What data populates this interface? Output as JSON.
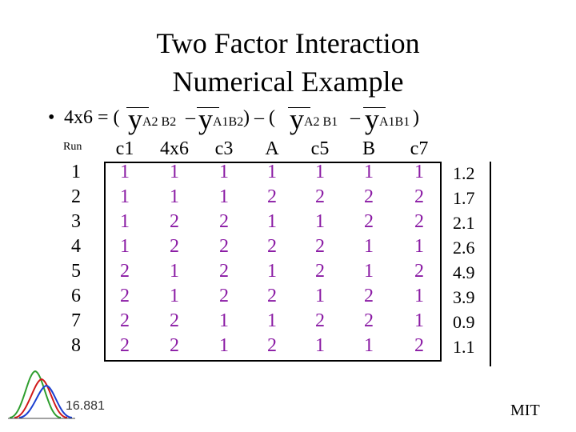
{
  "title": {
    "line1": "Two Factor Interaction",
    "line2": "Numerical Example"
  },
  "formula": {
    "bullet": "•",
    "lhs": "4x6 = (",
    "y": "y",
    "sub1": "A2  B2",
    "minus1": "–",
    "sub2": "A1B2",
    "mid": ") – (",
    "sub3": "A2  B1",
    "minus2": "–",
    "sub4": "A1B1",
    "end": ")"
  },
  "table": {
    "run_header": "Run",
    "columns": [
      "c1",
      "4x6",
      "c3",
      "A",
      "c5",
      "B",
      "c7"
    ],
    "runs": [
      "1",
      "2",
      "3",
      "4",
      "5",
      "6",
      "7",
      "8"
    ],
    "rows": [
      [
        "1",
        "1",
        "1",
        "1",
        "1",
        "1",
        "1"
      ],
      [
        "1",
        "1",
        "1",
        "2",
        "2",
        "2",
        "2"
      ],
      [
        "1",
        "2",
        "2",
        "1",
        "1",
        "2",
        "2"
      ],
      [
        "1",
        "2",
        "2",
        "2",
        "2",
        "1",
        "1"
      ],
      [
        "2",
        "1",
        "2",
        "1",
        "2",
        "1",
        "2"
      ],
      [
        "2",
        "1",
        "2",
        "2",
        "1",
        "2",
        "1"
      ],
      [
        "2",
        "2",
        "1",
        "1",
        "2",
        "2",
        "1"
      ],
      [
        "2",
        "2",
        "1",
        "2",
        "1",
        "1",
        "2"
      ]
    ],
    "responses": [
      "1.2",
      "1.7",
      "2.1",
      "2.6",
      "4.9",
      "3.9",
      "0.9",
      "1.1"
    ]
  },
  "footer": {
    "course": "16.881",
    "org": "MIT"
  },
  "colors": {
    "cell_text": "#8a1aa4",
    "logo_green": "#2e9e2e",
    "logo_red": "#d01818",
    "logo_blue": "#1a3fd0"
  }
}
